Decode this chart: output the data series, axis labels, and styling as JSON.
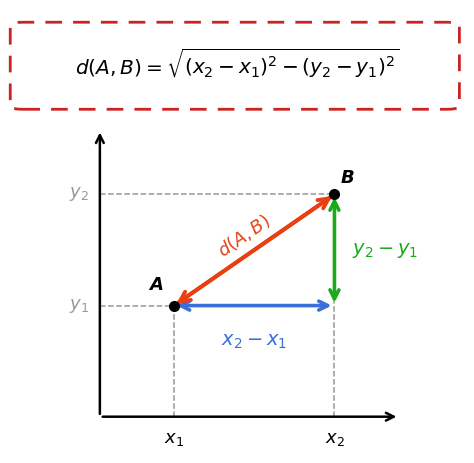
{
  "bg_color": "#ffffff",
  "point_A": [
    1.2,
    1.8
  ],
  "point_B": [
    3.8,
    3.6
  ],
  "color_red": "#e84010",
  "color_blue": "#3a6fd8",
  "color_green": "#1aaa1a",
  "color_dashed": "#999999",
  "color_formula_border": "#cc2222",
  "label_A": "A",
  "label_B": "B",
  "label_dAB": "$d(A,B)$",
  "label_x2x1": "$x_2 - x_1$",
  "label_y2y1": "$y_2 - y_1$",
  "label_x1": "$x_1$",
  "label_x2": "$x_2$",
  "label_y1": "$y_1$",
  "label_y2": "$y_2$",
  "formula": "$d(A,B) = \\sqrt{(x_2 - x_1)^2 - (y_2 - y_1)^2}$",
  "xlim": [
    -0.25,
    5.0
  ],
  "ylim": [
    -0.6,
    4.8
  ]
}
